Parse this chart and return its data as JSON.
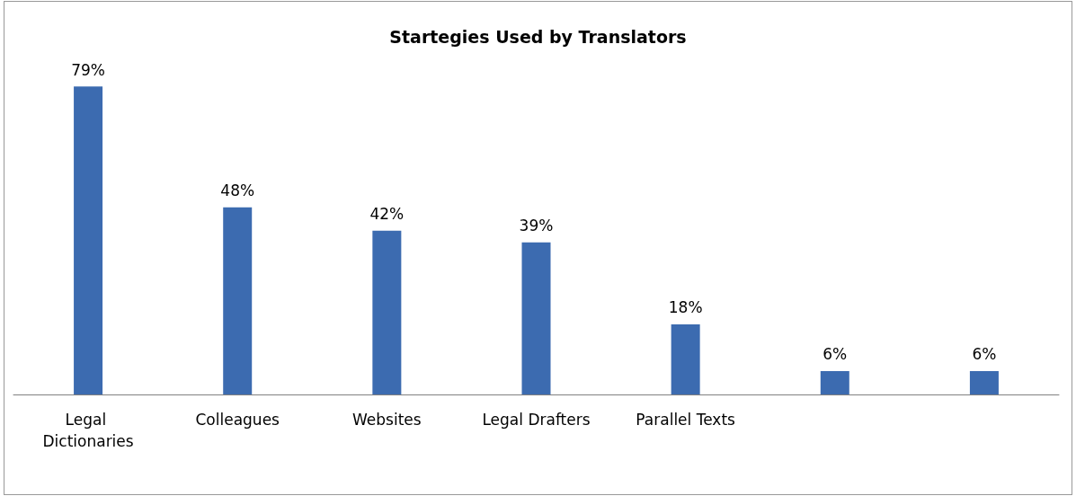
{
  "chart_data": {
    "type": "bar",
    "title": "Startegies Used by Translators",
    "categories": [
      "Legal Dictionaries",
      "Colleagues",
      "Websites",
      "Legal Drafters",
      "Parallel Texts",
      null,
      null
    ],
    "values": [
      79,
      48,
      42,
      39,
      18,
      6,
      6
    ],
    "value_labels": [
      "79%",
      "48%",
      "42%",
      "39%",
      "18%",
      "6%",
      "6%"
    ],
    "color": "#3c6bb0"
  }
}
